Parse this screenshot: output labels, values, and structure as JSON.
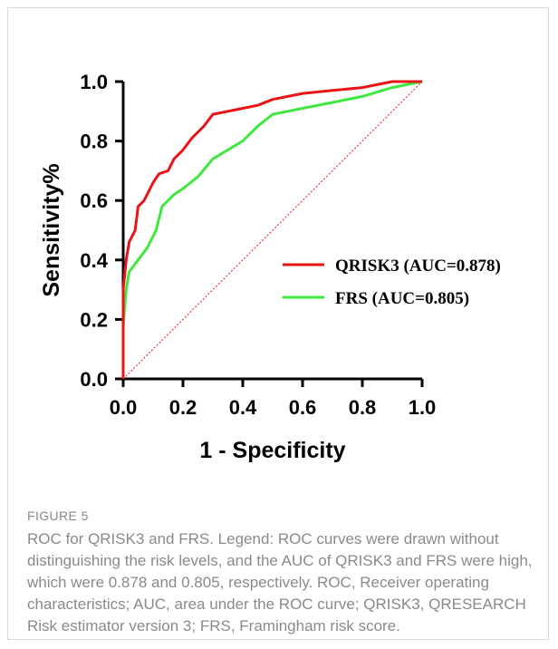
{
  "figure": {
    "label": "FIGURE 5",
    "caption": "ROC for QRISK3 and FRS. Legend: ROC curves were drawn without distinguishing the risk levels, and the AUC of QRISK3 and FRS were high, which were 0.878 and 0.805, respectively. ROC, Receiver operating characteristics; AUC, area under the ROC curve; QRISK3, QRESEARCH Risk estimator version 3; FRS, Framingham risk score."
  },
  "chart_data": {
    "type": "line",
    "title": "",
    "xlabel": "1 - Specificity",
    "ylabel": "Sensitivity%",
    "xlim": [
      0,
      1
    ],
    "ylim": [
      0,
      1
    ],
    "xticks": [
      "0.0",
      "0.2",
      "0.4",
      "0.6",
      "0.8",
      "1.0"
    ],
    "yticks": [
      "0.0",
      "0.2",
      "0.4",
      "0.6",
      "0.8",
      "1.0"
    ],
    "grid": false,
    "legend_position": "center-right",
    "series": [
      {
        "name": "QRISK3 (AUC=0.878)",
        "color": "#e81416",
        "points": [
          [
            0,
            0
          ],
          [
            0,
            0.3
          ],
          [
            0.01,
            0.4
          ],
          [
            0.02,
            0.46
          ],
          [
            0.04,
            0.5
          ],
          [
            0.05,
            0.58
          ],
          [
            0.07,
            0.6
          ],
          [
            0.1,
            0.66
          ],
          [
            0.12,
            0.69
          ],
          [
            0.15,
            0.7
          ],
          [
            0.17,
            0.74
          ],
          [
            0.2,
            0.77
          ],
          [
            0.23,
            0.81
          ],
          [
            0.27,
            0.85
          ],
          [
            0.3,
            0.89
          ],
          [
            0.35,
            0.9
          ],
          [
            0.4,
            0.91
          ],
          [
            0.45,
            0.92
          ],
          [
            0.5,
            0.94
          ],
          [
            0.6,
            0.96
          ],
          [
            0.7,
            0.97
          ],
          [
            0.8,
            0.98
          ],
          [
            0.9,
            1.0
          ],
          [
            1.0,
            1.0
          ]
        ]
      },
      {
        "name": "FRS (AUC=0.805)",
        "color": "#3ee83e",
        "points": [
          [
            0,
            0
          ],
          [
            0,
            0.18
          ],
          [
            0.01,
            0.3
          ],
          [
            0.02,
            0.36
          ],
          [
            0.05,
            0.4
          ],
          [
            0.08,
            0.44
          ],
          [
            0.11,
            0.5
          ],
          [
            0.13,
            0.58
          ],
          [
            0.17,
            0.62
          ],
          [
            0.2,
            0.64
          ],
          [
            0.25,
            0.68
          ],
          [
            0.3,
            0.74
          ],
          [
            0.35,
            0.77
          ],
          [
            0.4,
            0.8
          ],
          [
            0.45,
            0.85
          ],
          [
            0.5,
            0.89
          ],
          [
            0.55,
            0.9
          ],
          [
            0.6,
            0.91
          ],
          [
            0.7,
            0.93
          ],
          [
            0.8,
            0.95
          ],
          [
            0.9,
            0.98
          ],
          [
            1.0,
            1.0
          ]
        ]
      },
      {
        "color": "#e81416",
        "style": "dotted",
        "points": [
          [
            0,
            0
          ],
          [
            1,
            1
          ]
        ]
      }
    ]
  }
}
